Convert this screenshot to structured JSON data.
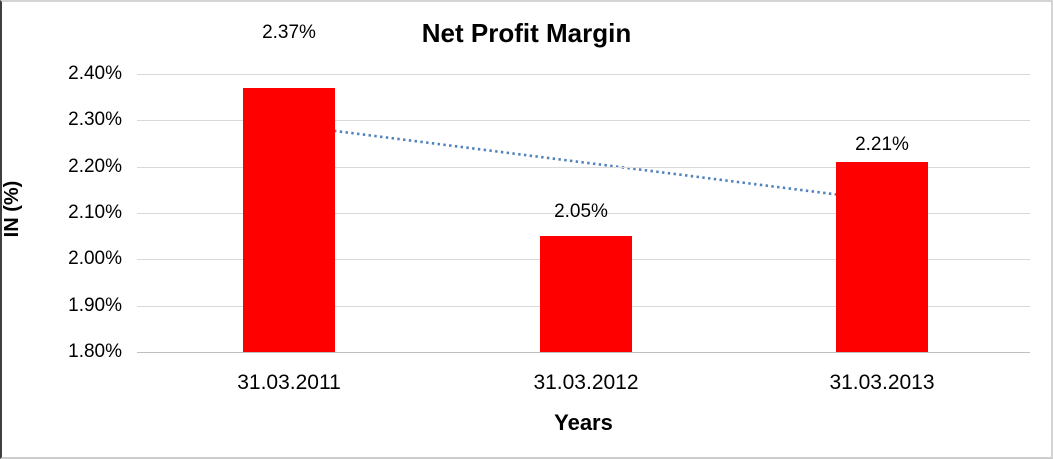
{
  "chart_data": {
    "type": "bar",
    "title": "Net Profit Margin",
    "xlabel": "Years",
    "ylabel": "IN (%)",
    "categories": [
      "31.03.2011",
      "31.03.2012",
      "31.03.2013"
    ],
    "series": [
      {
        "name": "Net Profit Margin",
        "values": [
          2.37,
          2.05,
          2.21
        ],
        "data_labels": [
          "2.37%",
          "2.05%",
          "2.21%"
        ]
      }
    ],
    "ylim": [
      1.8,
      2.4
    ],
    "ytick_step": 0.1,
    "ytick_labels": [
      "2.40%",
      "2.30%",
      "2.20%",
      "2.10%",
      "2.00%",
      "1.90%",
      "1.80%"
    ],
    "grid": true,
    "legend": "none",
    "bar_color": "#ff0000",
    "gridline_color": "#d9d9d9",
    "axis_line_color": "#bfbfbf",
    "trendline": {
      "type": "linear",
      "style": "dotted",
      "color": "#4f81bd",
      "start_value": 2.29,
      "end_value": 2.13
    }
  }
}
